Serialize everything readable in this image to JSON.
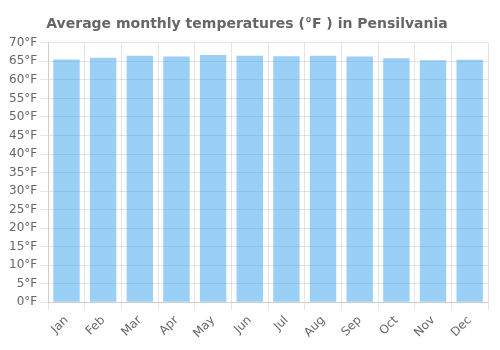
{
  "chart_data": {
    "type": "bar",
    "title": "Average monthly temperatures (°F ) in Pensilvania",
    "categories": [
      "Jan",
      "Feb",
      "Mar",
      "Apr",
      "May",
      "Jun",
      "Jul",
      "Aug",
      "Sep",
      "Oct",
      "Nov",
      "Dec"
    ],
    "values": [
      65.5,
      66.0,
      66.5,
      66.3,
      66.7,
      66.5,
      66.4,
      66.5,
      66.3,
      65.8,
      65.3,
      65.4
    ],
    "ylim": [
      0,
      70
    ],
    "yticks": [
      {
        "value": 0,
        "label": "0°F"
      },
      {
        "value": 5,
        "label": "5°F"
      },
      {
        "value": 10,
        "label": "10°F"
      },
      {
        "value": 15,
        "label": "15°F"
      },
      {
        "value": 20,
        "label": "20°F"
      },
      {
        "value": 25,
        "label": "25°F"
      },
      {
        "value": 30,
        "label": "30°F"
      },
      {
        "value": 35,
        "label": "35°F"
      },
      {
        "value": 40,
        "label": "40°F"
      },
      {
        "value": 45,
        "label": "45°F"
      },
      {
        "value": 50,
        "label": "50°F"
      },
      {
        "value": 55,
        "label": "55°F"
      },
      {
        "value": 60,
        "label": "60°F"
      },
      {
        "value": 65,
        "label": "65°F"
      },
      {
        "value": 70,
        "label": "70°F"
      }
    ],
    "grid": true
  }
}
